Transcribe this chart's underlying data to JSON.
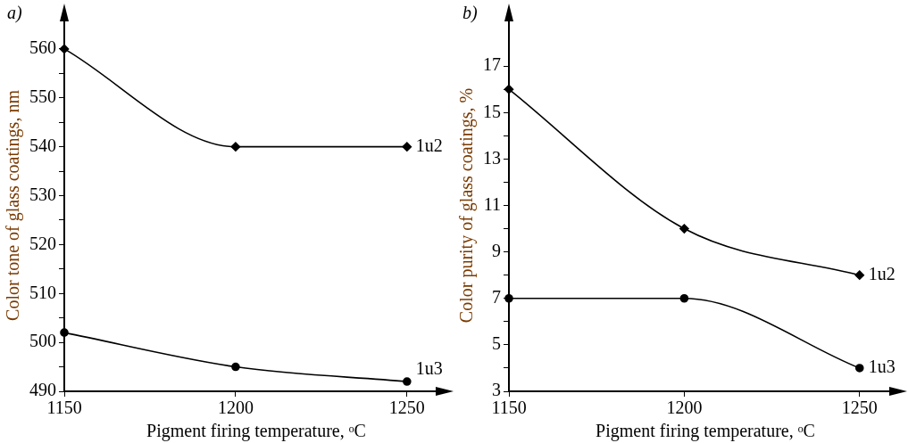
{
  "chart_data": [
    {
      "type": "line",
      "title": "a)",
      "xlabel": "Pigment firing temperature, ᵒC",
      "ylabel": "Color tone of glass coatings, nm",
      "x": [
        1150,
        1200,
        1250
      ],
      "series": [
        {
          "name": "1u2",
          "color": "#000000",
          "marker": "diamond",
          "values": [
            560,
            540,
            540
          ]
        },
        {
          "name": "1u3",
          "color": "#000000",
          "marker": "circle",
          "values": [
            502,
            495,
            492
          ]
        }
      ],
      "xlim": [
        1150,
        1262
      ],
      "xticks": [
        1150,
        1200,
        1250
      ],
      "ylim": [
        490,
        566
      ],
      "yticks": [
        490,
        {
          "value": 495,
          "label": null
        },
        500,
        {
          "value": 505,
          "label": null
        },
        510,
        {
          "value": 515,
          "label": null
        },
        520,
        {
          "value": 525,
          "label": null
        },
        530,
        {
          "value": 535,
          "label": null
        },
        540,
        {
          "value": 545,
          "label": null
        },
        550,
        {
          "value": 555,
          "label": null
        },
        560
      ],
      "grid": false,
      "legend": false,
      "line_style": "solid"
    },
    {
      "type": "line",
      "title": "b)",
      "xlabel": "Pigment firing temperature, ᵒC",
      "ylabel": "Color purity of glass coatings, %",
      "x": [
        1150,
        1200,
        1250
      ],
      "series": [
        {
          "name": "1u2",
          "color": "#000000",
          "marker": "diamond",
          "values": [
            16,
            10,
            8
          ]
        },
        {
          "name": "1u3",
          "color": "#000000",
          "marker": "circle",
          "values": [
            7,
            7,
            4
          ]
        }
      ],
      "xlim": [
        1150,
        1262
      ],
      "xticks": [
        1150,
        1200,
        1250
      ],
      "ylim": [
        3,
        19
      ],
      "yticks": [
        3,
        {
          "value": 4,
          "label": null
        },
        5,
        {
          "value": 6,
          "label": null
        },
        7,
        {
          "value": 8,
          "label": null
        },
        9,
        {
          "value": 10,
          "label": null
        },
        11,
        {
          "value": 12,
          "label": null
        },
        13,
        {
          "value": 14,
          "label": null
        },
        15,
        {
          "value": 16,
          "label": null
        },
        17
      ],
      "grid": false,
      "legend": false,
      "line_style": "solid"
    }
  ]
}
